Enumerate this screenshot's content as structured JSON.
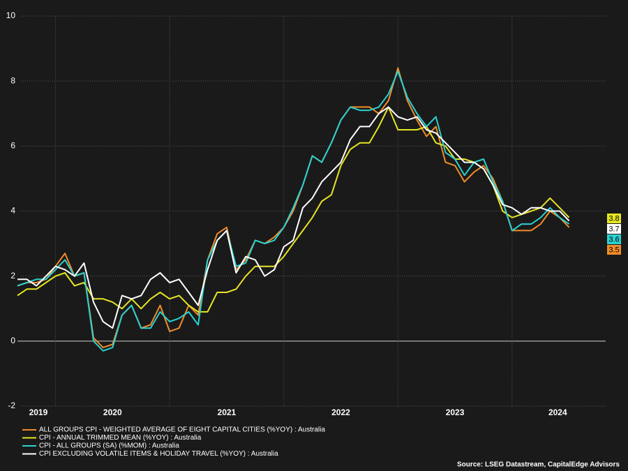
{
  "chart_data": {
    "type": "line",
    "x": [
      2019.667,
      2019.75,
      2019.833,
      2019.917,
      2020.0,
      2020.083,
      2020.167,
      2020.25,
      2020.333,
      2020.417,
      2020.5,
      2020.583,
      2020.667,
      2020.75,
      2020.833,
      2020.917,
      2021.0,
      2021.083,
      2021.167,
      2021.25,
      2021.333,
      2021.417,
      2021.5,
      2021.583,
      2021.667,
      2021.75,
      2021.833,
      2021.917,
      2022.0,
      2022.083,
      2022.167,
      2022.25,
      2022.333,
      2022.417,
      2022.5,
      2022.583,
      2022.667,
      2022.75,
      2022.833,
      2022.917,
      2023.0,
      2023.083,
      2023.167,
      2023.25,
      2023.333,
      2023.417,
      2023.5,
      2023.583,
      2023.667,
      2023.75,
      2023.833,
      2023.917,
      2024.0,
      2024.083,
      2024.167,
      2024.25,
      2024.333,
      2024.417,
      2024.5
    ],
    "series": [
      {
        "name": "ALL GROUPS CPI - WEIGHTED AVERAGE OF EIGHT CAPITAL CITIES (%YOY) : Australia",
        "color": "#f28c28",
        "values": [
          1.7,
          1.8,
          1.8,
          1.9,
          2.3,
          2.7,
          2.0,
          2.1,
          0.1,
          -0.2,
          -0.1,
          0.8,
          1.1,
          0.4,
          0.5,
          1.1,
          0.3,
          0.4,
          1.1,
          0.8,
          2.5,
          3.3,
          3.5,
          2.2,
          2.5,
          3.1,
          3.0,
          3.2,
          3.5,
          4.0,
          4.8,
          5.7,
          5.5,
          6.1,
          6.8,
          7.2,
          7.2,
          7.2,
          7.0,
          7.4,
          8.4,
          7.4,
          6.8,
          6.3,
          6.6,
          5.5,
          5.4,
          4.9,
          5.2,
          5.4,
          5.0,
          4.3,
          3.4,
          3.4,
          3.4,
          3.6,
          4.0,
          3.8,
          3.5
        ]
      },
      {
        "name": "CPI - ANNUAL TRIMMED MEAN (%YOY) : Australia",
        "color": "#e6e622",
        "values": [
          1.4,
          1.6,
          1.6,
          1.8,
          2.0,
          2.1,
          1.7,
          1.8,
          1.3,
          1.3,
          1.2,
          1.0,
          1.3,
          1.0,
          1.3,
          1.5,
          1.3,
          1.4,
          1.1,
          0.9,
          0.9,
          1.5,
          1.5,
          1.6,
          2.0,
          2.3,
          2.3,
          2.3,
          2.6,
          3.0,
          3.4,
          3.8,
          4.3,
          4.5,
          5.4,
          5.9,
          6.1,
          6.1,
          6.6,
          7.2,
          6.5,
          6.5,
          6.5,
          6.6,
          6.1,
          6.0,
          5.6,
          5.6,
          5.5,
          5.3,
          4.8,
          4.0,
          3.8,
          3.9,
          4.0,
          4.1,
          4.4,
          4.1,
          3.8
        ]
      },
      {
        "name": "CPI - ALL GROUPS (SA) (%MOM) : Australia",
        "color": "#2ad2d2",
        "values": [
          1.7,
          1.8,
          1.9,
          1.9,
          2.2,
          2.5,
          2.0,
          2.1,
          0.0,
          -0.3,
          -0.2,
          0.8,
          1.1,
          0.4,
          0.4,
          0.9,
          0.6,
          0.7,
          0.9,
          0.5,
          2.5,
          3.1,
          3.4,
          2.3,
          2.4,
          3.1,
          3.0,
          3.1,
          3.5,
          4.1,
          4.8,
          5.7,
          5.5,
          6.1,
          6.8,
          7.2,
          7.1,
          7.1,
          7.2,
          7.6,
          8.3,
          7.5,
          7.0,
          6.6,
          6.9,
          5.8,
          5.6,
          5.1,
          5.5,
          5.6,
          4.9,
          4.3,
          3.4,
          3.6,
          3.6,
          3.8,
          4.1,
          3.8,
          3.6
        ]
      },
      {
        "name": "CPI EXCLUDING VOLATILE ITEMS & HOLIDAY TRAVEL (%YOY) : Australia",
        "color": "#ffffff",
        "values": [
          1.9,
          1.9,
          1.7,
          2.0,
          2.3,
          2.2,
          2.0,
          2.4,
          1.2,
          0.6,
          0.4,
          1.4,
          1.3,
          1.4,
          1.9,
          2.1,
          1.8,
          1.9,
          1.5,
          1.1,
          2.2,
          3.1,
          3.4,
          2.1,
          2.6,
          2.5,
          2.0,
          2.2,
          2.9,
          3.1,
          4.1,
          4.4,
          4.9,
          5.2,
          5.5,
          6.2,
          6.6,
          6.6,
          7.0,
          7.2,
          6.9,
          6.8,
          6.9,
          6.5,
          6.4,
          6.1,
          5.8,
          5.5,
          5.5,
          5.3,
          4.8,
          4.2,
          4.1,
          3.9,
          4.1,
          4.1,
          4.0,
          4.0,
          3.7
        ]
      }
    ],
    "xlim": [
      2019.667,
      2024.82
    ],
    "xticks": [
      {
        "value": 2019.85,
        "label": "2019"
      },
      {
        "value": 2020.5,
        "label": "2020"
      },
      {
        "value": 2021.5,
        "label": "2021"
      },
      {
        "value": 2022.5,
        "label": "2022"
      },
      {
        "value": 2023.5,
        "label": "2023"
      },
      {
        "value": 2024.4,
        "label": "2024"
      }
    ],
    "xgrid": [
      2020,
      2021,
      2022,
      2023,
      2024
    ],
    "ylim": [
      -2,
      10
    ],
    "yticks": [
      -2,
      0,
      2,
      4,
      6,
      8,
      10
    ],
    "grid": true,
    "legend": "bottom-left",
    "source": "Source: LSEG Datastream, CapitalEdge Advisors"
  }
}
